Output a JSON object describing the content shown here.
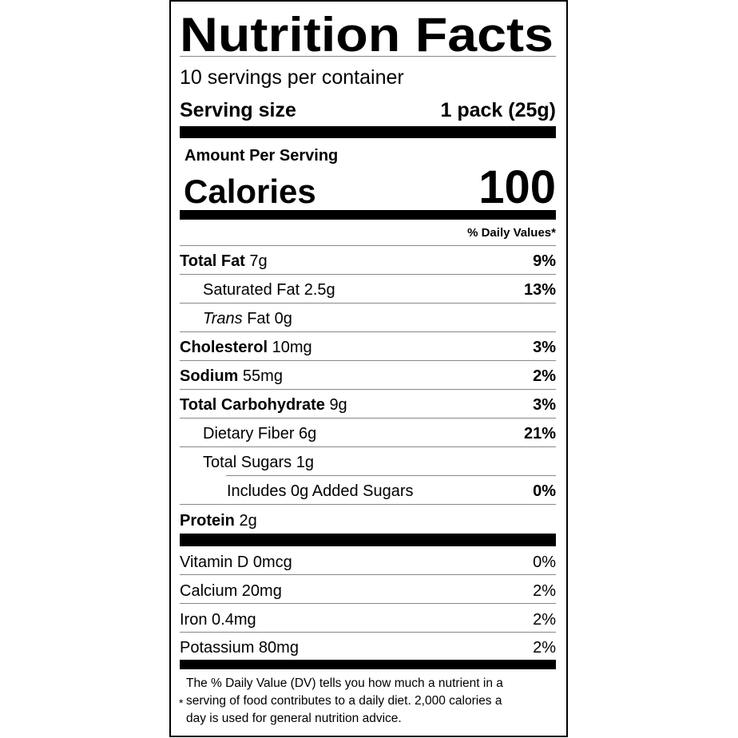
{
  "title": "Nutrition Facts",
  "servings_per_container": "10 servings per container",
  "serving_size": {
    "label": "Serving size",
    "value": "1 pack (25g)"
  },
  "amount_per_serving": "Amount Per Serving",
  "calories": {
    "label": "Calories",
    "value": "100"
  },
  "daily_values_header": "% Daily Values*",
  "nutrients": [
    {
      "name": "Total Fat",
      "amount": "7g",
      "dv": "9%"
    },
    {
      "name": "Saturated Fat",
      "amount": "2.5g",
      "dv": "13%"
    },
    {
      "name_italic": "Trans",
      "name": "Fat",
      "amount": "0g"
    },
    {
      "name": "Cholesterol",
      "amount": "10mg",
      "dv": "3%"
    },
    {
      "name": "Sodium",
      "amount": "55mg",
      "dv": "2%"
    },
    {
      "name": "Total Carbohydrate",
      "amount": "9g",
      "dv": "3%"
    },
    {
      "name": "Dietary Fiber",
      "amount": "6g",
      "dv": "21%"
    },
    {
      "name": "Total Sugars",
      "amount": "1g"
    },
    {
      "name": "Includes 0g Added Sugars",
      "dv": "0%"
    },
    {
      "name": "Protein",
      "amount": "2g"
    }
  ],
  "vitamins": [
    {
      "name": "Vitamin D 0mcg",
      "dv": "0%"
    },
    {
      "name": "Calcium 20mg",
      "dv": "2%"
    },
    {
      "name": "Iron 0.4mg",
      "dv": "2%"
    },
    {
      "name": "Potassium 80mg",
      "dv": "2%"
    }
  ],
  "footnote": {
    "star": "*",
    "lines": [
      "The % Daily Value (DV) tells you how much a nutrient in a",
      "serving of food contributes to a daily diet. 2,000 calories a",
      "day is used for general nutrition advice."
    ]
  }
}
